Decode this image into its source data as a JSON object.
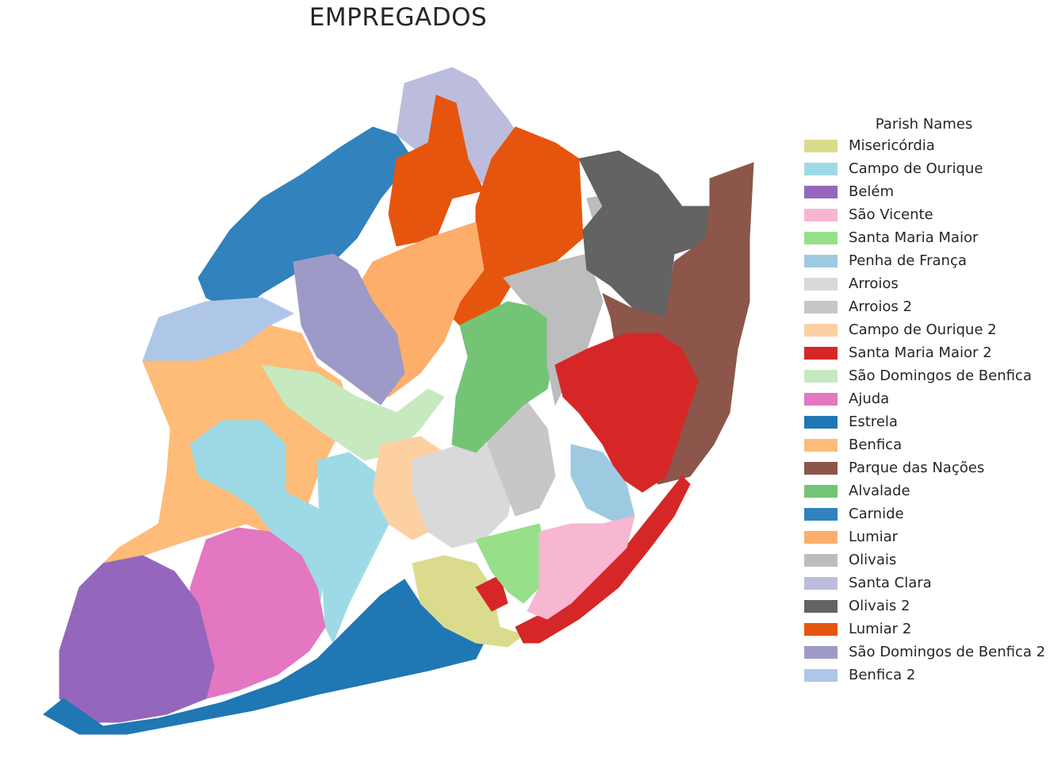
{
  "title": "EMPREGADOS",
  "legend": {
    "title": "Parish Names",
    "items": [
      {
        "label": "Misericórdia",
        "color": "#dbdb8d"
      },
      {
        "label": "Campo de Ourique",
        "color": "#9edae5"
      },
      {
        "label": "Belém",
        "color": "#9467bd"
      },
      {
        "label": "São Vicente",
        "color": "#f7b6d2"
      },
      {
        "label": "Santa Maria Maior",
        "color": "#98df8a"
      },
      {
        "label": "Penha de França",
        "color": "#9ecae1"
      },
      {
        "label": "Arroios",
        "color": "#d9d9d9"
      },
      {
        "label": "Arroios 2",
        "color": "#c7c7c7"
      },
      {
        "label": "Campo de Ourique 2",
        "color": "#fdd0a2"
      },
      {
        "label": "Santa Maria Maior 2",
        "color": "#d62728"
      },
      {
        "label": "São Domingos de Benfica",
        "color": "#c7e9c0"
      },
      {
        "label": "Ajuda",
        "color": "#e377c2"
      },
      {
        "label": "Estrela",
        "color": "#1f77b4"
      },
      {
        "label": "Benfica",
        "color": "#ffbb78"
      },
      {
        "label": "Parque das Nações",
        "color": "#8c564b"
      },
      {
        "label": "Alvalade",
        "color": "#74c476"
      },
      {
        "label": "Carnide",
        "color": "#3182bd"
      },
      {
        "label": "Lumiar",
        "color": "#fdae6b"
      },
      {
        "label": "Olivais",
        "color": "#bdbdbd"
      },
      {
        "label": "Santa Clara",
        "color": "#bcbddc"
      },
      {
        "label": "Olivais 2",
        "color": "#636363"
      },
      {
        "label": "Lumiar 2",
        "color": "#e6550d"
      },
      {
        "label": "São Domingos de Benfica 2",
        "color": "#9e9ac8"
      },
      {
        "label": "Benfica 2",
        "color": "#aec7e8"
      }
    ]
  }
}
